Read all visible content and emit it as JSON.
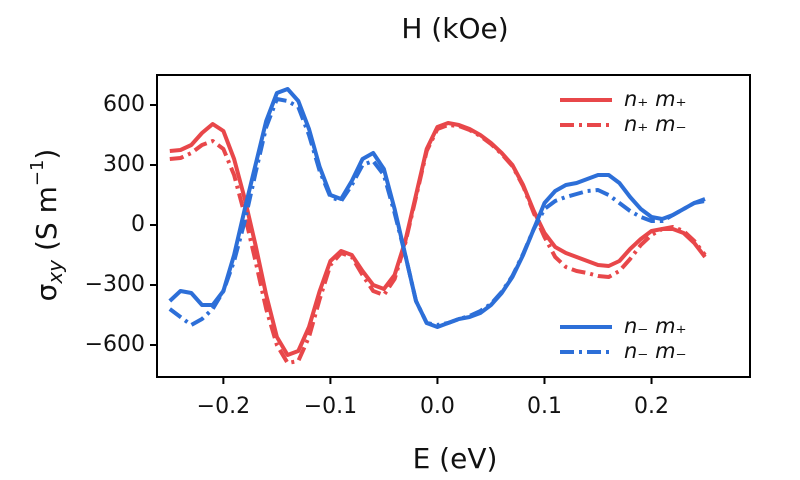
{
  "chart_data": {
    "type": "line",
    "title": "H (kOe)",
    "xlabel": "E (eV)",
    "ylabel_parts": [
      "σ",
      "xy",
      " (S m",
      "−1",
      ")"
    ],
    "x": [
      -0.25,
      -0.24,
      -0.23,
      -0.22,
      -0.21,
      -0.2,
      -0.19,
      -0.18,
      -0.17,
      -0.16,
      -0.15,
      -0.14,
      -0.13,
      -0.12,
      -0.11,
      -0.1,
      -0.09,
      -0.08,
      -0.07,
      -0.06,
      -0.05,
      -0.04,
      -0.03,
      -0.02,
      -0.01,
      0,
      0.01,
      0.02,
      0.03,
      0.04,
      0.05,
      0.06,
      0.07,
      0.08,
      0.09,
      0.1,
      0.11,
      0.12,
      0.13,
      0.14,
      0.15,
      0.16,
      0.17,
      0.18,
      0.19,
      0.2,
      0.21,
      0.22,
      0.23,
      0.24,
      0.25
    ],
    "series": [
      {
        "name": "n₊ m₊",
        "color": "#e8474a",
        "dash": "solid",
        "legend": "upper right",
        "values": [
          370,
          375,
          400,
          460,
          505,
          470,
          330,
          130,
          -100,
          -350,
          -560,
          -650,
          -630,
          -510,
          -330,
          -180,
          -130,
          -150,
          -230,
          -300,
          -320,
          -250,
          -80,
          150,
          380,
          490,
          510,
          500,
          480,
          450,
          410,
          360,
          300,
          200,
          70,
          -40,
          -110,
          -140,
          -160,
          -180,
          -200,
          -205,
          -180,
          -120,
          -70,
          -30,
          -20,
          -20,
          -40,
          -90,
          -160
        ]
      },
      {
        "name": "n₊ m₋",
        "color": "#e8474a",
        "dash": "dashdot",
        "legend": "upper right",
        "values": [
          330,
          335,
          360,
          400,
          420,
          380,
          250,
          50,
          -180,
          -420,
          -600,
          -690,
          -680,
          -560,
          -370,
          -200,
          -140,
          -160,
          -250,
          -330,
          -350,
          -270,
          -90,
          140,
          370,
          480,
          500,
          495,
          475,
          445,
          405,
          355,
          295,
          195,
          60,
          -60,
          -160,
          -210,
          -230,
          -240,
          -255,
          -260,
          -230,
          -170,
          -100,
          -50,
          -20,
          -10,
          -30,
          -80,
          -150
        ]
      },
      {
        "name": "n₋ m₊",
        "color": "#2d6fd8",
        "dash": "solid",
        "legend": "lower right",
        "values": [
          -380,
          -330,
          -340,
          -400,
          -400,
          -330,
          -150,
          80,
          300,
          520,
          660,
          680,
          620,
          480,
          290,
          150,
          130,
          220,
          330,
          360,
          280,
          80,
          -150,
          -380,
          -490,
          -510,
          -490,
          -470,
          -460,
          -440,
          -400,
          -340,
          -260,
          -150,
          -20,
          110,
          170,
          200,
          210,
          230,
          250,
          250,
          210,
          140,
          80,
          40,
          30,
          50,
          80,
          110,
          130
        ]
      },
      {
        "name": "n₋ m₋",
        "color": "#2d6fd8",
        "dash": "dashdot",
        "legend": "lower right",
        "values": [
          -420,
          -460,
          -500,
          -470,
          -420,
          -330,
          -180,
          20,
          260,
          490,
          630,
          620,
          590,
          450,
          270,
          140,
          120,
          200,
          300,
          320,
          250,
          60,
          -150,
          -380,
          -490,
          -500,
          -490,
          -470,
          -455,
          -430,
          -395,
          -335,
          -255,
          -145,
          -20,
          80,
          120,
          140,
          155,
          170,
          175,
          150,
          110,
          70,
          40,
          20,
          20,
          50,
          80,
          110,
          120
        ]
      }
    ],
    "xlim": [
      -0.262,
      0.292
    ],
    "ylim": [
      -760,
      750
    ],
    "xticks": [
      {
        "value": -0.2,
        "label": "−0.2"
      },
      {
        "value": -0.1,
        "label": "−0.1"
      },
      {
        "value": 0,
        "label": "0.0"
      },
      0.1,
      0.2
    ],
    "yticks": [
      {
        "value": -600,
        "label": "−600"
      },
      {
        "value": -300,
        "label": "−300"
      },
      0,
      300,
      600
    ]
  }
}
